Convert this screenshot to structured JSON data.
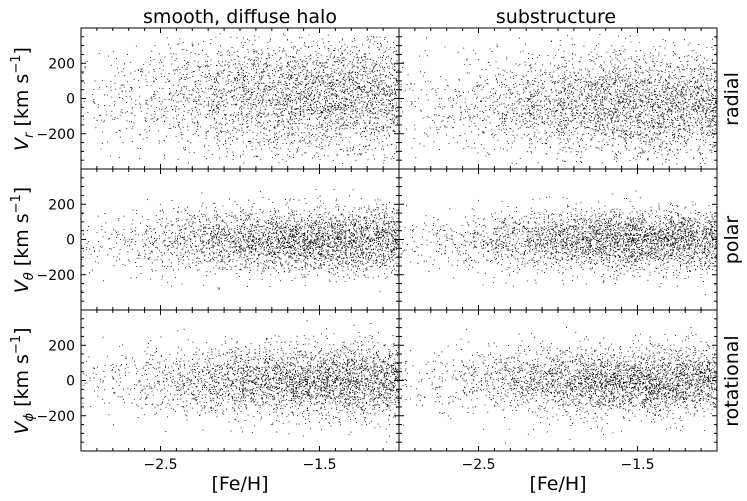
{
  "chart_data": {
    "type": "scatter",
    "layout": "grid 3 rows x 2 columns, shared axes",
    "columns": [
      {
        "title": "smooth, diffuse halo"
      },
      {
        "title": "substructure"
      }
    ],
    "rows": [
      {
        "component": "radial",
        "ylabel_main": "V",
        "ylabel_sub": "r",
        "ylabel_units": "[km s",
        "ylabel_exp": "−1",
        "ylabel_close": "]"
      },
      {
        "component": "polar",
        "ylabel_main": "V",
        "ylabel_sub": "θ",
        "ylabel_units": "[km s",
        "ylabel_exp": "−1",
        "ylabel_close": "]"
      },
      {
        "component": "rotational",
        "ylabel_main": "V",
        "ylabel_sub": "ϕ",
        "ylabel_units": "[km s",
        "ylabel_exp": "−1",
        "ylabel_close": "]"
      }
    ],
    "xlabel": "[Fe/H]",
    "xlim": [
      -3.0,
      -1.0
    ],
    "ylim": [
      -400,
      400
    ],
    "xticks": [
      -2.5,
      -1.5
    ],
    "xtick_labels": [
      "−2.5",
      "−1.5"
    ],
    "yticks": [
      -200,
      0,
      200
    ],
    "ytick_labels": [
      "−200",
      "0",
      "200"
    ],
    "marker": {
      "color": "#000000",
      "size": "tiny point"
    },
    "panels": [
      {
        "row": 0,
        "col": 0,
        "name": "smooth-radial",
        "density": [
          0.1,
          0.18,
          0.28,
          0.42,
          0.62,
          0.8,
          0.95,
          1.0,
          1.0,
          0.92
        ],
        "y_center": 20,
        "y_sigma": 165,
        "y_min": -370,
        "y_max": 370
      },
      {
        "row": 0,
        "col": 1,
        "name": "substructure-radial",
        "density": [
          0.1,
          0.16,
          0.26,
          0.4,
          0.58,
          0.78,
          0.95,
          1.0,
          1.0,
          0.92
        ],
        "y_center": -40,
        "y_sigma": 150,
        "y_min": -370,
        "y_max": 370
      },
      {
        "row": 1,
        "col": 0,
        "name": "smooth-polar",
        "density": [
          0.08,
          0.15,
          0.28,
          0.45,
          0.62,
          0.78,
          0.92,
          1.0,
          1.0,
          0.9
        ],
        "y_center": 0,
        "y_sigma": 90,
        "y_min": -370,
        "y_max": 370
      },
      {
        "row": 1,
        "col": 1,
        "name": "substructure-polar",
        "density": [
          0.08,
          0.14,
          0.26,
          0.42,
          0.6,
          0.78,
          0.94,
          1.0,
          1.0,
          0.9
        ],
        "y_center": 0,
        "y_sigma": 85,
        "y_min": -370,
        "y_max": 370
      },
      {
        "row": 2,
        "col": 0,
        "name": "smooth-rotational",
        "density": [
          0.08,
          0.14,
          0.26,
          0.42,
          0.6,
          0.76,
          0.92,
          1.0,
          1.0,
          0.92
        ],
        "y_center": 0,
        "y_sigma": 100,
        "y_min": -370,
        "y_max": 370
      },
      {
        "row": 2,
        "col": 1,
        "name": "substructure-rotational",
        "density": [
          0.08,
          0.14,
          0.26,
          0.42,
          0.6,
          0.78,
          0.94,
          1.0,
          1.0,
          0.9
        ],
        "y_center": 0,
        "y_sigma": 95,
        "y_min": -370,
        "y_max": 370
      }
    ]
  }
}
